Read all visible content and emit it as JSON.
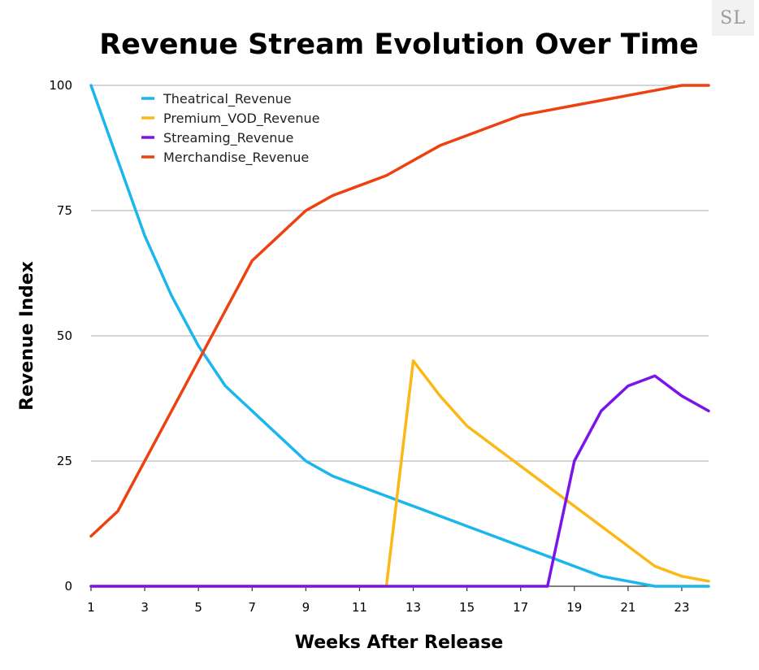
{
  "logo": {
    "text": "SL"
  },
  "chart_data": {
    "type": "line",
    "title": "Revenue Stream Evolution Over Time",
    "xlabel": "Weeks After Release",
    "ylabel": "Revenue Index",
    "x": [
      1,
      2,
      3,
      4,
      5,
      6,
      7,
      8,
      9,
      10,
      11,
      12,
      13,
      14,
      15,
      16,
      17,
      18,
      19,
      20,
      21,
      22,
      23,
      24
    ],
    "xticks": [
      1,
      3,
      5,
      7,
      9,
      11,
      13,
      15,
      17,
      19,
      21,
      23
    ],
    "yticks": [
      0,
      25,
      50,
      75,
      100
    ],
    "xlim": [
      1,
      24
    ],
    "ylim": [
      0,
      100
    ],
    "grid": "horizontal",
    "legend_position": "top-left",
    "series": [
      {
        "name": "Theatrical_Revenue",
        "color": "#1ab6ec",
        "values": [
          100,
          85,
          70,
          58,
          48,
          40,
          35,
          30,
          25,
          22,
          20,
          18,
          16,
          14,
          12,
          10,
          8,
          6,
          4,
          2,
          1,
          0,
          0,
          0
        ]
      },
      {
        "name": "Premium_VOD_Revenue",
        "color": "#fbb917",
        "values": [
          0,
          0,
          0,
          0,
          0,
          0,
          0,
          0,
          0,
          0,
          0,
          0,
          45,
          38,
          32,
          28,
          24,
          20,
          16,
          12,
          8,
          4,
          2,
          1
        ]
      },
      {
        "name": "Streaming_Revenue",
        "color": "#7b14e8",
        "values": [
          0,
          0,
          0,
          0,
          0,
          0,
          0,
          0,
          0,
          0,
          0,
          0,
          0,
          0,
          0,
          0,
          0,
          0,
          25,
          35,
          40,
          42,
          38,
          35
        ]
      },
      {
        "name": "Merchandise_Revenue",
        "color": "#ee4112",
        "values": [
          10,
          15,
          25,
          35,
          45,
          55,
          65,
          70,
          75,
          78,
          80,
          82,
          85,
          88,
          90,
          92,
          94,
          95,
          96,
          97,
          98,
          99,
          100,
          100
        ]
      }
    ]
  }
}
